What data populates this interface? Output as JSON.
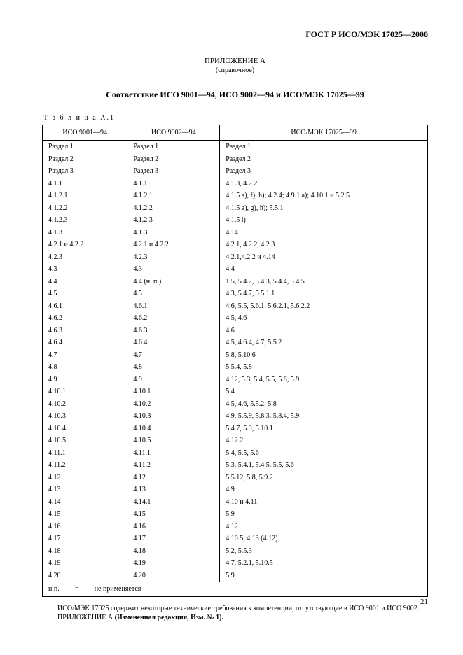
{
  "doc_title": "ГОСТ Р ИСО/МЭК 17025—2000",
  "appendix_title": "ПРИЛОЖЕНИЕ А",
  "appendix_sub": "(справочное)",
  "correspondence": "Соответствие ИСО 9001—94, ИСО 9002—94 и ИСО/МЭК 17025—99",
  "table_label": "Т а б л и ц а   А.1",
  "headers": {
    "c1": "ИСО 9001—94",
    "c2": "ИСО 9002—94",
    "c3": "ИСО/МЭК 17025—99"
  },
  "rows": [
    {
      "c1": "Раздел 1",
      "c2": "Раздел 1",
      "c3": "Раздел 1"
    },
    {
      "c1": "Раздел 2",
      "c2": "Раздел 2",
      "c3": "Раздел 2"
    },
    {
      "c1": "Раздел 3",
      "c2": "Раздел 3",
      "c3": "Раздел 3"
    },
    {
      "c1": "4.1.1",
      "c2": "4.1.1",
      "c3": "4.1.3, 4.2.2"
    },
    {
      "c1": "4.1.2.1",
      "c2": "4.1.2.1",
      "c3": "4.1.5 a), f), h); 4.2.4; 4.9.1 a); 4.10.1 и 5.2.5"
    },
    {
      "c1": "4.1.2.2",
      "c2": "4.1.2.2",
      "c3": "4.1.5 a), g), h); 5.5.1"
    },
    {
      "c1": "4.1.2.3",
      "c2": "4.1.2.3",
      "c3": "4.1.5 i)"
    },
    {
      "c1": "4.1.3",
      "c2": "4.1.3",
      "c3": "4.14"
    },
    {
      "c1": "4.2.1 и 4.2.2",
      "c2": "4.2.1 и 4.2.2",
      "c3": "4.2.1, 4.2.2, 4.2.3"
    },
    {
      "c1": "4.2.3",
      "c2": "4.2.3",
      "c3": "4.2.1,4.2.2 и 4.14"
    },
    {
      "c1": "4.3",
      "c2": "4.3",
      "c3": "4.4"
    },
    {
      "c1": "4.4",
      "c2": "4.4 (н. п.)",
      "c3": "1.5, 5.4.2, 5.4.3, 5.4.4, 5.4.5"
    },
    {
      "c1": "4.5",
      "c2": "4.5",
      "c3": "4.3, 5.4.7, 5.5.1.1"
    },
    {
      "c1": "4.6.1",
      "c2": "4.6.1",
      "c3": "4.6, 5.5, 5.6.1, 5.6.2.1, 5.6.2.2"
    },
    {
      "c1": "4.6.2",
      "c2": "4.6.2",
      "c3": "4.5, 4.6"
    },
    {
      "c1": "4.6.3",
      "c2": "4.6.3",
      "c3": "4.6"
    },
    {
      "c1": "4.6.4",
      "c2": "4.6.4",
      "c3": "4.5, 4.6.4, 4.7, 5.5.2"
    },
    {
      "c1": "4.7",
      "c2": "4.7",
      "c3": "5.8, 5.10.6"
    },
    {
      "c1": "4.8",
      "c2": "4.8",
      "c3": "5.5.4, 5.8"
    },
    {
      "c1": "4.9",
      "c2": "4.9",
      "c3": "4.12, 5.3, 5.4, 5.5, 5.8, 5.9"
    },
    {
      "c1": "4.10.1",
      "c2": "4.10.1",
      "c3": "5.4"
    },
    {
      "c1": "4.10.2",
      "c2": "4.10.2",
      "c3": "4.5, 4.6, 5.5.2, 5.8"
    },
    {
      "c1": "4.10.3",
      "c2": "4.10.3",
      "c3": "4.9, 5.5.9, 5.8.3, 5.8.4, 5.9"
    },
    {
      "c1": "4.10.4",
      "c2": "4.10.4",
      "c3": "5.4.7, 5.9, 5.10.1"
    },
    {
      "c1": "4.10.5",
      "c2": "4.10.5",
      "c3": "4.12.2"
    },
    {
      "c1": "4.11.1",
      "c2": "4.11.1",
      "c3": "5.4, 5.5, 5.6"
    },
    {
      "c1": "4.11.2",
      "c2": "4.11.2",
      "c3": "5.3, 5.4.1, 5.4.5, 5.5, 5.6"
    },
    {
      "c1": "4.12",
      "c2": "4.12",
      "c3": "5.5.12, 5.8, 5.9.2"
    },
    {
      "c1": "4.13",
      "c2": "4.13",
      "c3": "4.9"
    },
    {
      "c1": "4.14",
      "c2": "4.14.1",
      "c3": "4.10 и 4.11"
    },
    {
      "c1": "4.15",
      "c2": "4.15",
      "c3": "5.9"
    },
    {
      "c1": "4.16",
      "c2": "4.16",
      "c3": "4.12"
    },
    {
      "c1": "4.17",
      "c2": "4.17",
      "c3": "4.10.5, 4.13 (4.12)"
    },
    {
      "c1": "4.18",
      "c2": "4.18",
      "c3": "5.2, 5.5.3"
    },
    {
      "c1": "4.19",
      "c2": "4.19",
      "c3": "4.7, 5.2.1, 5.10.5"
    },
    {
      "c1": "4.20",
      "c2": "4.20",
      "c3": "5.9"
    }
  ],
  "foot": {
    "l": "н.п.",
    "m": "=",
    "r": "не применяется"
  },
  "note1": "ИСО/МЭК 17025 содержит некоторые технические требования к компетенции, отсутствующие в ИСО 9001 и ИСО 9002.",
  "note2a": "ПРИЛОЖЕНИЕ А  ",
  "note2b": "(Измененная редакция, Изм. № 1).",
  "pagenum": "21"
}
